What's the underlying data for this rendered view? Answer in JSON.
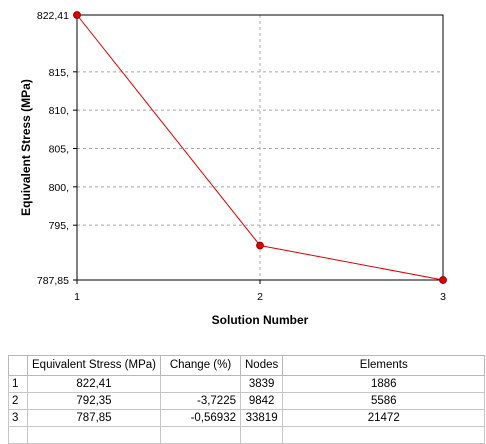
{
  "chart_data": {
    "type": "line",
    "xlabel": "Solution Number",
    "ylabel": "Equivalent Stress (MPa)",
    "x": [
      1,
      2,
      3
    ],
    "x_ticks": [
      "1",
      "2",
      "3"
    ],
    "xlim": [
      1,
      3
    ],
    "y": [
      822.41,
      792.35,
      787.85
    ],
    "ylim": [
      787.85,
      822.41
    ],
    "y_ticks": [
      {
        "value": 787.85,
        "label": "787,85"
      },
      {
        "value": 795,
        "label": "795,"
      },
      {
        "value": 800,
        "label": "800,"
      },
      {
        "value": 805,
        "label": "805,"
      },
      {
        "value": 810,
        "label": "810,"
      },
      {
        "value": 815,
        "label": "815,"
      },
      {
        "value": 822.41,
        "label": "822,41"
      }
    ],
    "grid": true,
    "line_color": "#e00000",
    "marker_color": "#e00000"
  },
  "table": {
    "headers": [
      "",
      "Equivalent Stress (MPa)",
      "Change (%)",
      "Nodes",
      "Elements"
    ],
    "rows": [
      {
        "index": "1",
        "stress": "822,41",
        "change": "",
        "nodes": "3839",
        "elements": "1886"
      },
      {
        "index": "2",
        "stress": "792,35",
        "change": "-3,7225",
        "nodes": "9842",
        "elements": "5586"
      },
      {
        "index": "3",
        "stress": "787,85",
        "change": "-0,56932",
        "nodes": "33819",
        "elements": "21472"
      }
    ]
  }
}
